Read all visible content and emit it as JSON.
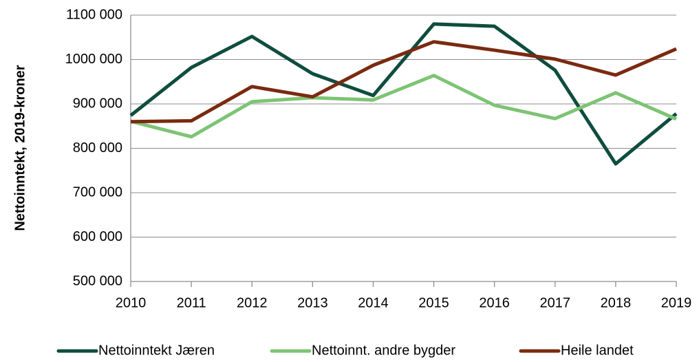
{
  "chart_data": {
    "type": "line",
    "y_label": "Nettoinntekt, 2019-kroner",
    "categories": [
      "2010",
      "2011",
      "2012",
      "2013",
      "2014",
      "2015",
      "2016",
      "2017",
      "2018",
      "2019"
    ],
    "series": [
      {
        "name": "Nettoinntekt Jæren",
        "color": "#0f4d3e",
        "values": [
          874000,
          982000,
          1052000,
          968000,
          919000,
          1080000,
          1075000,
          976000,
          765000,
          878000
        ]
      },
      {
        "name": "Nettoinnt. andre bygder",
        "color": "#7dc474",
        "values": [
          861000,
          826000,
          905000,
          914000,
          909000,
          964000,
          897000,
          867000,
          925000,
          866000
        ]
      },
      {
        "name": "Heile landet",
        "color": "#7a2a10",
        "values": [
          860000,
          862000,
          939000,
          916000,
          987000,
          1040000,
          1021000,
          1001000,
          965000,
          1024000
        ]
      }
    ],
    "ylim": [
      500000,
      1100000
    ],
    "yticks": [
      {
        "value": 500000,
        "label": "500 000"
      },
      {
        "value": 600000,
        "label": "600 000"
      },
      {
        "value": 700000,
        "label": "700 000"
      },
      {
        "value": 800000,
        "label": "800 000"
      },
      {
        "value": 900000,
        "label": "900 000"
      },
      {
        "value": 1000000,
        "label": "1000 000"
      },
      {
        "value": 1100000,
        "label": "1100 000"
      }
    ],
    "grid": true,
    "legend": "bottom"
  }
}
